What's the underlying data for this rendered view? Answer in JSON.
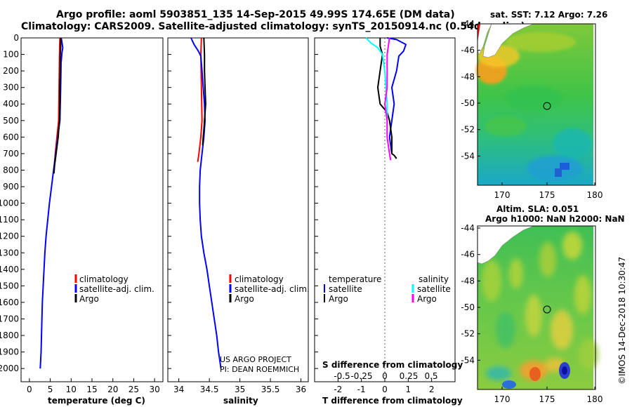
{
  "header": {
    "line1": "Argo profile: aoml 5903851_135 14-Sep-2015 49.99S 174.65E (DM data)",
    "line2": "Climatology: CARS2009. Satellite-adjusted climatology: synTS_20150914.nc (0.54d earlier)"
  },
  "colors": {
    "climatology": "#ff0000",
    "satellite": "#0000ff",
    "argo": "#000000",
    "sat_salinity": "#00ffff",
    "argo_salinity": "#ff00ff"
  },
  "chart_data": [
    {
      "type": "line",
      "id": "temperature_profile",
      "xlabel": "temperature (deg C)",
      "ylabel": "",
      "xlim": [
        -2,
        32
      ],
      "ylim": [
        2080,
        0
      ],
      "xticks": [
        "0",
        "5",
        "10",
        "15",
        "20",
        "25",
        "30"
      ],
      "yticks": [
        "0",
        "100",
        "200",
        "300",
        "400",
        "500",
        "600",
        "700",
        "800",
        "900",
        "1000",
        "1100",
        "1200",
        "1300",
        "1400",
        "1500",
        "1600",
        "1700",
        "1800",
        "1900",
        "2000"
      ],
      "legend": [
        "climatology",
        "satellite-adj. clim.",
        "Argo"
      ],
      "series": [
        {
          "name": "climatology",
          "color": "#ff0000",
          "points": [
            [
              7.3,
              0
            ],
            [
              7.2,
              100
            ],
            [
              7.1,
              300
            ],
            [
              7.0,
              500
            ],
            [
              6.6,
              600
            ],
            [
              6.2,
              700
            ],
            [
              5.9,
              800
            ]
          ]
        },
        {
          "name": "satellite-adj. clim.",
          "color": "#0000ff",
          "points": [
            [
              7.6,
              0
            ],
            [
              7.7,
              10
            ],
            [
              8.0,
              60
            ],
            [
              7.8,
              90
            ],
            [
              7.6,
              150
            ],
            [
              7.5,
              300
            ],
            [
              7.3,
              500
            ],
            [
              6.8,
              600
            ],
            [
              6.3,
              700
            ],
            [
              5.8,
              800
            ],
            [
              5.3,
              900
            ],
            [
              4.8,
              1000
            ],
            [
              4.4,
              1100
            ],
            [
              4.0,
              1200
            ],
            [
              3.7,
              1300
            ],
            [
              3.5,
              1400
            ],
            [
              3.3,
              1500
            ],
            [
              3.1,
              1600
            ],
            [
              3.0,
              1700
            ],
            [
              2.9,
              1800
            ],
            [
              2.8,
              1900
            ],
            [
              2.6,
              2000
            ]
          ]
        },
        {
          "name": "Argo",
          "color": "#000000",
          "points": [
            [
              7.5,
              0
            ],
            [
              7.5,
              60
            ],
            [
              7.4,
              100
            ],
            [
              7.4,
              200
            ],
            [
              7.3,
              300
            ],
            [
              7.3,
              400
            ],
            [
              7.2,
              500
            ],
            [
              7.0,
              560
            ],
            [
              6.9,
              600
            ],
            [
              6.6,
              660
            ],
            [
              6.3,
              720
            ],
            [
              6.0,
              780
            ],
            [
              5.9,
              820
            ]
          ]
        }
      ]
    },
    {
      "type": "line",
      "id": "salinity_profile",
      "xlabel": "salinity",
      "xlim": [
        33.82,
        36.12
      ],
      "ylim": [
        2080,
        0
      ],
      "xticks": [
        "34",
        "34.5",
        "35",
        "35.5",
        "36"
      ],
      "legend": [
        "climatology",
        "satellite-adj. clim.",
        "Argo"
      ],
      "annotations": [
        "US ARGO PROJECT",
        "PI: DEAN ROEMMICH"
      ],
      "series": [
        {
          "name": "climatology",
          "color": "#ff0000",
          "points": [
            [
              34.37,
              0
            ],
            [
              34.36,
              100
            ],
            [
              34.37,
              300
            ],
            [
              34.38,
              500
            ],
            [
              34.36,
              600
            ],
            [
              34.33,
              700
            ],
            [
              34.31,
              750
            ]
          ]
        },
        {
          "name": "satellite-adj. clim.",
          "color": "#0000ff",
          "points": [
            [
              34.2,
              0
            ],
            [
              34.25,
              40
            ],
            [
              34.32,
              80
            ],
            [
              34.36,
              110
            ],
            [
              34.38,
              200
            ],
            [
              34.4,
              300
            ],
            [
              34.42,
              400
            ],
            [
              34.43,
              500
            ],
            [
              34.41,
              600
            ],
            [
              34.38,
              700
            ],
            [
              34.35,
              800
            ],
            [
              34.34,
              900
            ],
            [
              34.34,
              1000
            ],
            [
              34.35,
              1100
            ],
            [
              34.37,
              1200
            ],
            [
              34.41,
              1300
            ],
            [
              34.46,
              1400
            ],
            [
              34.5,
              1500
            ],
            [
              34.54,
              1600
            ],
            [
              34.58,
              1700
            ],
            [
              34.62,
              1800
            ],
            [
              34.65,
              1900
            ],
            [
              34.69,
              2000
            ]
          ]
        },
        {
          "name": "Argo",
          "color": "#000000",
          "points": [
            [
              34.41,
              0
            ],
            [
              34.42,
              100
            ],
            [
              34.42,
              200
            ],
            [
              34.43,
              300
            ],
            [
              34.44,
              400
            ],
            [
              34.42,
              500
            ],
            [
              34.41,
              560
            ],
            [
              34.4,
              600
            ],
            [
              34.39,
              650
            ]
          ]
        }
      ]
    },
    {
      "type": "line",
      "id": "difference_profile",
      "xlabel": "T difference from climatology",
      "title_inside": "S difference from climatology",
      "xlim": [
        -3,
        3
      ],
      "ylim": [
        2080,
        0
      ],
      "xticks": [
        "-2",
        "-1",
        "0",
        "1",
        "2"
      ],
      "s_ticks": [
        "-0.5",
        "-0.25",
        "0",
        "0.25",
        "0.5"
      ],
      "legend": {
        "temperature_header": "temperature",
        "salinity_header": "salinity",
        "temperature": [
          "satellite",
          "Argo"
        ],
        "salinity": [
          "satellite",
          "Argo"
        ]
      },
      "series": [
        {
          "name": "T satellite",
          "color": "#0000ff",
          "points": [
            [
              0.1,
              0
            ],
            [
              0.5,
              10
            ],
            [
              0.9,
              40
            ],
            [
              0.8,
              80
            ],
            [
              0.6,
              110
            ],
            [
              0.5,
              200
            ],
            [
              0.3,
              300
            ],
            [
              0.4,
              400
            ],
            [
              0.3,
              500
            ],
            [
              0.2,
              600
            ],
            [
              0.3,
              700
            ]
          ]
        },
        {
          "name": "T Argo",
          "color": "#000000",
          "points": [
            [
              -0.2,
              0
            ],
            [
              -0.2,
              50
            ],
            [
              -0.1,
              100
            ],
            [
              -0.2,
              200
            ],
            [
              -0.3,
              300
            ],
            [
              -0.2,
              400
            ],
            [
              0.1,
              450
            ],
            [
              0.2,
              500
            ],
            [
              0.3,
              600
            ],
            [
              0.3,
              700
            ],
            [
              0.4,
              710
            ],
            [
              0.5,
              730
            ]
          ]
        },
        {
          "name": "S satellite",
          "color": "#00ffff",
          "points": [
            [
              -0.8,
              0
            ],
            [
              -0.6,
              30
            ],
            [
              -0.3,
              60
            ],
            [
              -0.1,
              100
            ],
            [
              0.0,
              200
            ],
            [
              0.05,
              300
            ],
            [
              0.1,
              400
            ],
            [
              0.1,
              500
            ],
            [
              0.1,
              600
            ]
          ]
        },
        {
          "name": "S Argo",
          "color": "#ff00ff",
          "points": [
            [
              0.2,
              0
            ],
            [
              0.1,
              100
            ],
            [
              0.1,
              200
            ],
            [
              0.1,
              300
            ],
            [
              0.0,
              400
            ],
            [
              0.1,
              500
            ],
            [
              0.1,
              600
            ],
            [
              0.2,
              700
            ],
            [
              0.25,
              740
            ]
          ]
        }
      ]
    }
  ],
  "map_top": {
    "title": "sat. SST: 7.12 Argo: 7.26",
    "xticks": [
      "170",
      "175",
      "180"
    ],
    "yticks": [
      "-44",
      "-46",
      "-48",
      "-50",
      "-52",
      "-54"
    ]
  },
  "map_bottom": {
    "title1": "Altim. SLA: 0.051",
    "title2": "Argo h1000: NaN h2000: NaN",
    "xticks": [
      "170",
      "175",
      "180"
    ],
    "yticks": [
      "-44",
      "-46",
      "-48",
      "-50",
      "-52",
      "-54"
    ]
  },
  "credit": "©IMOS 14-Dec-2018 10:30:47"
}
